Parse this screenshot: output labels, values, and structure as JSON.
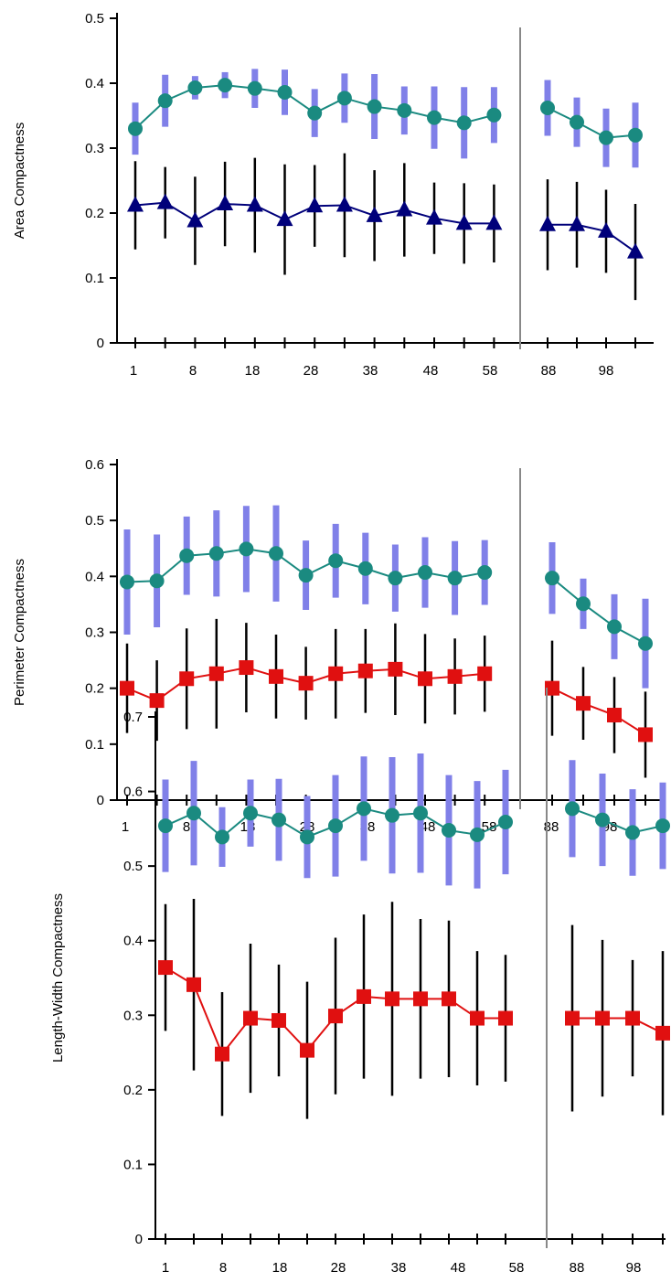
{
  "colors": {
    "teal": "#1a8a80",
    "teal_error": "#8080e8",
    "navy": "#00007a",
    "red": "#e01010",
    "black_error": "#000000",
    "divider": "#888888"
  },
  "chart_data": [
    {
      "type": "line",
      "ylabel": "Area Compactness",
      "ylim": [
        0,
        0.5
      ],
      "yticks": [
        "0",
        "0.1",
        "0.2",
        "0.3",
        "0.4",
        "0.5"
      ],
      "x_tick_labels": [
        "1",
        "8",
        "18",
        "28",
        "38",
        "48",
        "58",
        "88",
        "98"
      ],
      "x_groups": [
        {
          "x": [
            1,
            4,
            8,
            13,
            18,
            23,
            28,
            33,
            38,
            43,
            48,
            53,
            58
          ]
        },
        {
          "x": [
            88,
            93,
            98,
            103
          ]
        }
      ],
      "series": [
        {
          "marker": "circle",
          "color": "teal",
          "error_color": "teal_error",
          "error_style": "thick",
          "values": [
            [
              0.33,
              0.373,
              0.393,
              0.397,
              0.392,
              0.386,
              0.354,
              0.377,
              0.364,
              0.358,
              0.347,
              0.339,
              0.351
            ],
            [
              0.362,
              0.34,
              0.316,
              0.32
            ]
          ],
          "errors": [
            [
              0.04,
              0.04,
              0.018,
              0.02,
              0.03,
              0.035,
              0.037,
              0.038,
              0.05,
              0.037,
              0.048,
              0.055,
              0.043
            ],
            [
              0.043,
              0.038,
              0.045,
              0.05
            ]
          ]
        },
        {
          "marker": "triangle",
          "color": "navy",
          "error_color": "black_error",
          "error_style": "thin",
          "values": [
            [
              0.212,
              0.216,
              0.188,
              0.214,
              0.212,
              0.19,
              0.211,
              0.212,
              0.196,
              0.205,
              0.192,
              0.184,
              0.184
            ],
            [
              0.182,
              0.182,
              0.172,
              0.14
            ]
          ],
          "errors": [
            [
              0.068,
              0.055,
              0.068,
              0.065,
              0.073,
              0.085,
              0.063,
              0.08,
              0.07,
              0.072,
              0.055,
              0.062,
              0.06
            ],
            [
              0.07,
              0.066,
              0.064,
              0.074
            ]
          ]
        }
      ]
    },
    {
      "type": "line",
      "ylabel": "Perimeter Compactness",
      "ylim": [
        0,
        0.6
      ],
      "yticks": [
        "0",
        "0.1",
        "0.2",
        "0.3",
        "0.4",
        "0.5",
        "0.6"
      ],
      "x_tick_labels": [
        "1",
        "8",
        "18",
        "28",
        "38",
        "48",
        "58",
        "88",
        "98"
      ],
      "x_groups": [
        {
          "x": [
            1,
            4,
            8,
            13,
            18,
            23,
            28,
            33,
            38,
            43,
            48,
            53,
            58
          ]
        },
        {
          "x": [
            88,
            93,
            98,
            103
          ]
        }
      ],
      "series": [
        {
          "marker": "circle",
          "color": "teal",
          "error_color": "teal_error",
          "error_style": "thick",
          "values": [
            [
              0.39,
              0.392,
              0.437,
              0.441,
              0.449,
              0.441,
              0.402,
              0.428,
              0.414,
              0.397,
              0.407,
              0.397,
              0.407
            ],
            [
              0.397,
              0.351,
              0.31,
              0.28
            ]
          ],
          "errors": [
            [
              0.094,
              0.083,
              0.07,
              0.077,
              0.077,
              0.086,
              0.062,
              0.066,
              0.064,
              0.06,
              0.063,
              0.066,
              0.058
            ],
            [
              0.064,
              0.045,
              0.058,
              0.08
            ]
          ]
        },
        {
          "marker": "square",
          "color": "red",
          "error_color": "black_error",
          "error_style": "thin",
          "values": [
            [
              0.2,
              0.178,
              0.217,
              0.226,
              0.237,
              0.221,
              0.209,
              0.226,
              0.231,
              0.234,
              0.217,
              0.221,
              0.226
            ],
            [
              0.2,
              0.173,
              0.152,
              0.117
            ]
          ],
          "errors": [
            [
              0.08,
              0.072,
              0.09,
              0.098,
              0.08,
              0.075,
              0.065,
              0.08,
              0.075,
              0.082,
              0.08,
              0.068,
              0.068
            ],
            [
              0.085,
              0.065,
              0.068,
              0.077
            ]
          ]
        }
      ]
    },
    {
      "type": "line",
      "ylabel": "Length-Width Compactness",
      "ylim": [
        0,
        0.7
      ],
      "yticks": [
        "0",
        "0.1",
        "0.2",
        "0.3",
        "0.4",
        "0.5",
        "0.6",
        "0.7"
      ],
      "x_tick_labels": [
        "1",
        "8",
        "18",
        "28",
        "38",
        "48",
        "58",
        "88",
        "98"
      ],
      "x_groups": [
        {
          "x": [
            1,
            4,
            8,
            13,
            18,
            23,
            28,
            33,
            38,
            43,
            48,
            53,
            58
          ]
        },
        {
          "x": [
            88,
            93,
            98,
            103
          ]
        }
      ],
      "series": [
        {
          "marker": "circle",
          "color": "teal",
          "error_color": "teal_error",
          "error_style": "thick",
          "values": [
            [
              0.554,
              0.571,
              0.539,
              0.571,
              0.562,
              0.539,
              0.554,
              0.577,
              0.568,
              0.571,
              0.548,
              0.542,
              0.559
            ],
            [
              0.577,
              0.562,
              0.545,
              0.554
            ]
          ],
          "errors": [
            [
              0.062,
              0.07,
              0.04,
              0.045,
              0.055,
              0.055,
              0.068,
              0.07,
              0.078,
              0.08,
              0.074,
              0.072,
              0.07
            ],
            [
              0.065,
              0.062,
              0.058,
              0.058
            ]
          ]
        },
        {
          "marker": "square",
          "color": "red",
          "error_color": "black_error",
          "error_style": "thin",
          "values": [
            [
              0.364,
              0.341,
              0.248,
              0.296,
              0.293,
              0.253,
              0.299,
              0.325,
              0.322,
              0.322,
              0.322,
              0.296,
              0.296
            ],
            [
              0.296,
              0.296,
              0.296,
              0.276
            ]
          ],
          "errors": [
            [
              0.085,
              0.115,
              0.083,
              0.1,
              0.075,
              0.092,
              0.105,
              0.11,
              0.13,
              0.107,
              0.105,
              0.09,
              0.085
            ],
            [
              0.125,
              0.105,
              0.078,
              0.11
            ]
          ]
        }
      ]
    }
  ]
}
